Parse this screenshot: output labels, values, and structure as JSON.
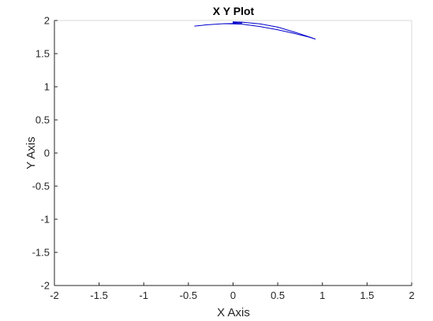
{
  "chart_data": {
    "type": "line",
    "title": "X Y Plot",
    "xlabel": "X Axis",
    "ylabel": "Y Axis",
    "xlim": [
      -2,
      2
    ],
    "ylim": [
      -2,
      2
    ],
    "xticks": [
      -2,
      -1.5,
      -1,
      -0.5,
      0,
      0.5,
      1,
      1.5,
      2
    ],
    "yticks": [
      -2,
      -1.5,
      -1,
      -0.5,
      0,
      0.5,
      1,
      1.5,
      2
    ],
    "xtick_labels": [
      "-2",
      "-1.5",
      "-1",
      "-0.5",
      "0",
      "0.5",
      "1",
      "1.5",
      "2"
    ],
    "ytick_labels": [
      "-2",
      "-1.5",
      "-1",
      "-0.5",
      "0",
      "0.5",
      "1",
      "1.5",
      "2"
    ],
    "grid": false,
    "series": [
      {
        "color": "#0000cc",
        "x": [
          0.04,
          -0.1,
          -0.3,
          -0.43,
          -0.3,
          -0.1,
          0.1,
          0.3,
          0.5,
          0.7,
          0.85,
          0.92,
          0.88,
          0.7,
          0.5,
          0.3,
          0.1,
          0.0,
          0.1,
          0.03,
          0.0,
          0.1
        ],
        "y": [
          1.955,
          1.952,
          1.935,
          1.915,
          1.935,
          1.952,
          1.945,
          1.91,
          1.86,
          1.8,
          1.75,
          1.72,
          1.74,
          1.82,
          1.9,
          1.95,
          1.975,
          1.98,
          1.965,
          1.96,
          1.965,
          1.96
        ]
      }
    ]
  }
}
